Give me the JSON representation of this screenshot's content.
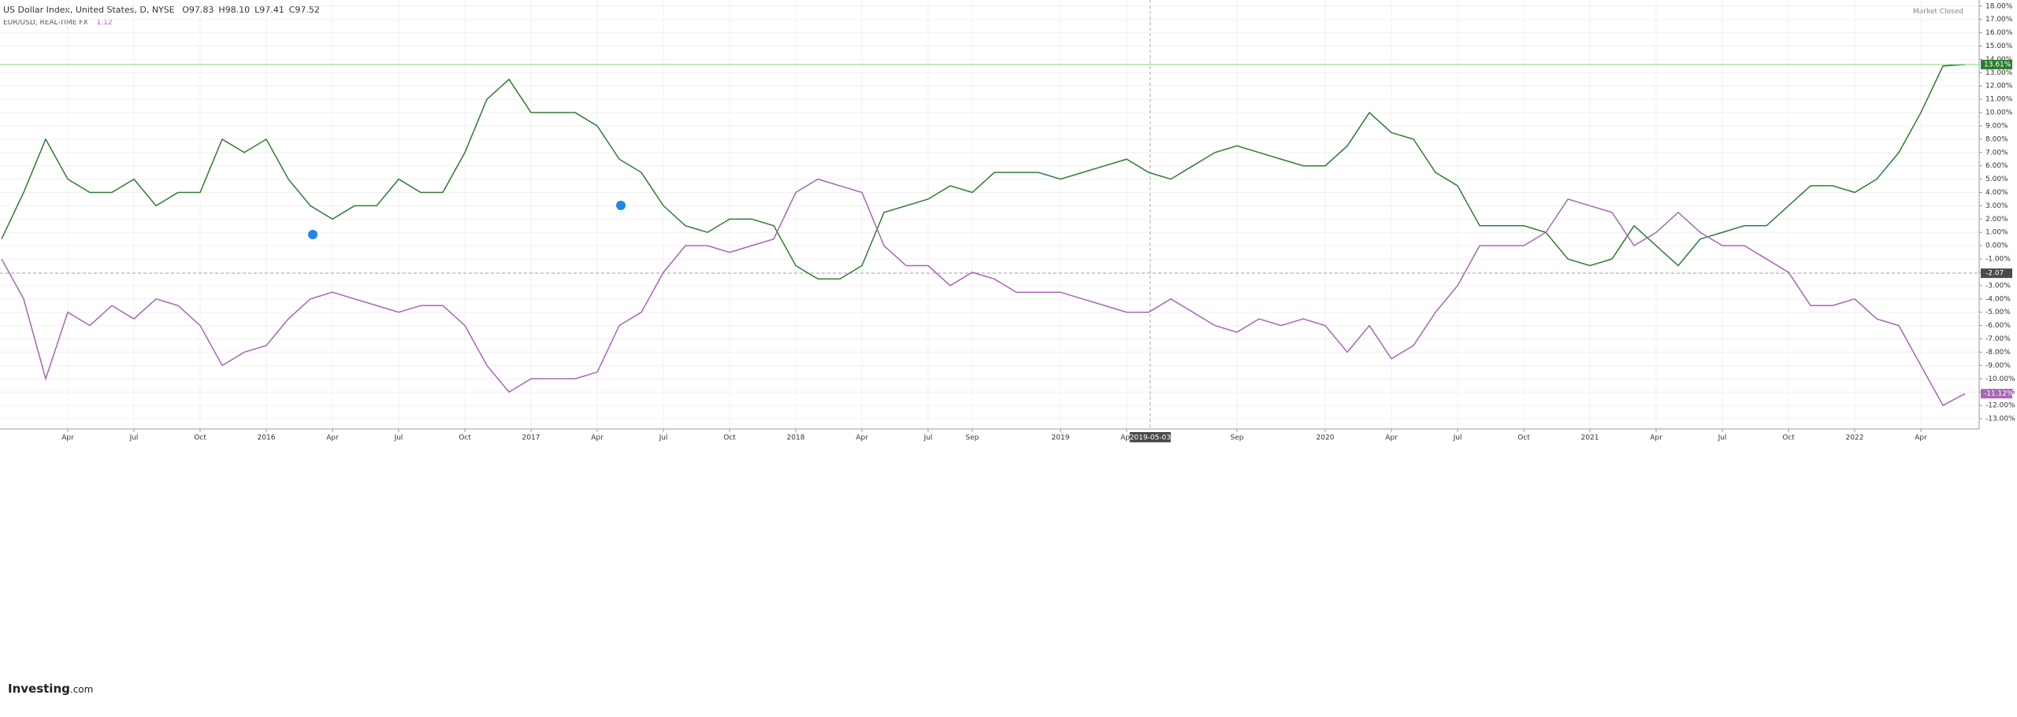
{
  "chart_data": {
    "type": "line",
    "header": {
      "ohlc": [
        "O97.83",
        "H98.10",
        "L97.41",
        "C97.52"
      ],
      "compare_value": "1.12",
      "status": "Market Closed"
    },
    "logo": {
      "brand": "Investing",
      "suffix": ".com"
    },
    "x": [
      "2015-01",
      "2015-02",
      "2015-03",
      "2015-04",
      "2015-05",
      "2015-06",
      "2015-07",
      "2015-08",
      "2015-09",
      "2015-10",
      "2015-11",
      "2015-12",
      "2016-01",
      "2016-02",
      "2016-03",
      "2016-04",
      "2016-05",
      "2016-06",
      "2016-07",
      "2016-08",
      "2016-09",
      "2016-10",
      "2016-11",
      "2016-12",
      "2017-01",
      "2017-02",
      "2017-03",
      "2017-04",
      "2017-05",
      "2017-06",
      "2017-07",
      "2017-08",
      "2017-09",
      "2017-10",
      "2017-11",
      "2017-12",
      "2018-01",
      "2018-02",
      "2018-03",
      "2018-04",
      "2018-05",
      "2018-06",
      "2018-07",
      "2018-08",
      "2018-09",
      "2018-10",
      "2018-11",
      "2018-12",
      "2019-01",
      "2019-02",
      "2019-03",
      "2019-04",
      "2019-05",
      "2019-06",
      "2019-07",
      "2019-08",
      "2019-09",
      "2019-10",
      "2019-11",
      "2019-12",
      "2020-01",
      "2020-02",
      "2020-03",
      "2020-04",
      "2020-05",
      "2020-06",
      "2020-07",
      "2020-08",
      "2020-09",
      "2020-10",
      "2020-11",
      "2020-12",
      "2021-01",
      "2021-02",
      "2021-03",
      "2021-04",
      "2021-05",
      "2021-06",
      "2021-07",
      "2021-08",
      "2021-09",
      "2021-10",
      "2021-11",
      "2021-12",
      "2022-01",
      "2022-02",
      "2022-03",
      "2022-04",
      "2022-05",
      "2022-06"
    ],
    "series": [
      {
        "name": "US Dollar Index, United States, D, NYSE",
        "color": "#2e7d32",
        "values": [
          0.5,
          4,
          8,
          5,
          4,
          4,
          5,
          3,
          4,
          4,
          8,
          7,
          8,
          5,
          3,
          2,
          3,
          3,
          5,
          4,
          4,
          7,
          11,
          12.5,
          10,
          10,
          10,
          9,
          6.5,
          5.5,
          3,
          1.5,
          1,
          2,
          2,
          1.5,
          -1.5,
          -2.5,
          -2.5,
          -1.5,
          2.5,
          3,
          3.5,
          4.5,
          4,
          5.5,
          5.5,
          5.5,
          5,
          5.5,
          6,
          6.5,
          5.5,
          5,
          6,
          7,
          7.5,
          7,
          6.5,
          6,
          6,
          7.5,
          10,
          8.5,
          8,
          5.5,
          4.5,
          1.5,
          1.5,
          1.5,
          1,
          -1,
          -1.5,
          -1,
          1.5,
          0,
          -1.5,
          0.5,
          1,
          1.5,
          1.5,
          3,
          4.5,
          4.5,
          4,
          5,
          7,
          10,
          13.5,
          13.61
        ],
        "last_value": {
          "value": 13.61,
          "label": "13.61%"
        }
      },
      {
        "name": "EUR/USD, REAL-TIME FX",
        "color": "#a865b5",
        "values": [
          -1,
          -4,
          -10,
          -5,
          -6,
          -4.5,
          -5.5,
          -4,
          -4.5,
          -6,
          -9,
          -8,
          -7.5,
          -5.5,
          -4,
          -3.5,
          -4,
          -4.5,
          -5,
          -4.5,
          -4.5,
          -6,
          -9,
          -11,
          -10,
          -10,
          -10,
          -9.5,
          -6,
          -5,
          -2,
          0,
          0,
          -0.5,
          0,
          0.5,
          4,
          5,
          4.5,
          4,
          0,
          -1.5,
          -1.5,
          -3,
          -2,
          -2.5,
          -3.5,
          -3.5,
          -3.5,
          -4,
          -4.5,
          -5,
          -5,
          -4,
          -5,
          -6,
          -6.5,
          -5.5,
          -6,
          -5.5,
          -6,
          -8,
          -6,
          -8.5,
          -7.5,
          -5,
          -3,
          0,
          0,
          0,
          1,
          3.5,
          3,
          2.5,
          0,
          1,
          2.5,
          1,
          0,
          0,
          -1,
          -2,
          -4.5,
          -4.5,
          -4,
          -5.5,
          -6,
          -9,
          -12,
          -11.12
        ],
        "last_value": {
          "value": -11.12,
          "label": "-11.12%"
        }
      }
    ],
    "crosshair": {
      "x": "2019-05-03",
      "y": -2.07
    },
    "ylim": [
      -13.77,
      18.46
    ],
    "yticks": [
      {
        "value": 18,
        "label": "18.00%"
      },
      {
        "value": 17,
        "label": "17.00%"
      },
      {
        "value": 16,
        "label": "16.00%"
      },
      {
        "value": 15,
        "label": "15.00%"
      },
      {
        "value": 14,
        "label": "14.00%"
      },
      {
        "value": 13,
        "label": "13.00%"
      },
      {
        "value": 12,
        "label": "12.00%"
      },
      {
        "value": 11,
        "label": "11.00%"
      },
      {
        "value": 10,
        "label": "10.00%"
      },
      {
        "value": 9,
        "label": "9.00%"
      },
      {
        "value": 8,
        "label": "8.00%"
      },
      {
        "value": 7,
        "label": "7.00%"
      },
      {
        "value": 6,
        "label": "6.00%"
      },
      {
        "value": 5,
        "label": "5.00%"
      },
      {
        "value": 4,
        "label": "4.00%"
      },
      {
        "value": 3,
        "label": "3.00%"
      },
      {
        "value": 2,
        "label": "2.00%"
      },
      {
        "value": 1,
        "label": "1.00%"
      },
      {
        "value": 0,
        "label": "0.00%"
      },
      {
        "value": -1,
        "label": "-1.00%"
      },
      {
        "value": -2,
        "label": "-2.00%"
      },
      {
        "value": -3,
        "label": "-3.00%"
      },
      {
        "value": -4,
        "label": "-4.00%"
      },
      {
        "value": -5,
        "label": "-5.00%"
      },
      {
        "value": -6,
        "label": "-6.00%"
      },
      {
        "value": -7,
        "label": "-7.00%"
      },
      {
        "value": -8,
        "label": "-8.00%"
      },
      {
        "value": -9,
        "label": "-9.00%"
      },
      {
        "value": -10,
        "label": "-10.00%"
      },
      {
        "value": -11,
        "label": "-11.00%"
      },
      {
        "value": -12,
        "label": "-12.00%"
      },
      {
        "value": -13,
        "label": "-13.00%"
      }
    ],
    "xticks": [
      {
        "value": "2015-04",
        "label": "Apr"
      },
      {
        "value": "2015-07",
        "label": "Jul"
      },
      {
        "value": "2015-10",
        "label": "Oct"
      },
      {
        "value": "2016-01",
        "label": "2016"
      },
      {
        "value": "2016-04",
        "label": "Apr"
      },
      {
        "value": "2016-07",
        "label": "Jul"
      },
      {
        "value": "2016-10",
        "label": "Oct"
      },
      {
        "value": "2017-01",
        "label": "2017"
      },
      {
        "value": "2017-04",
        "label": "Apr"
      },
      {
        "value": "2017-07",
        "label": "Jul"
      },
      {
        "value": "2017-10",
        "label": "Oct"
      },
      {
        "value": "2018-01",
        "label": "2018"
      },
      {
        "value": "2018-04",
        "label": "Apr"
      },
      {
        "value": "2018-07",
        "label": "Jul"
      },
      {
        "value": "2018-09",
        "label": "Sep"
      },
      {
        "value": "2019-01",
        "label": "2019"
      },
      {
        "value": "2019-04",
        "label": "Apr"
      },
      {
        "value": "2019-09",
        "label": "Sep"
      },
      {
        "value": "2020-01",
        "label": "2020"
      },
      {
        "value": "2020-04",
        "label": "Apr"
      },
      {
        "value": "2020-07",
        "label": "Jul"
      },
      {
        "value": "2020-10",
        "label": "Oct"
      },
      {
        "value": "2021-01",
        "label": "2021"
      },
      {
        "value": "2021-04",
        "label": "Apr"
      },
      {
        "value": "2021-07",
        "label": "Jul"
      },
      {
        "value": "2021-10",
        "label": "Oct"
      },
      {
        "value": "2022-01",
        "label": "2022"
      },
      {
        "value": "2022-04",
        "label": "Apr"
      }
    ],
    "grid": true
  }
}
